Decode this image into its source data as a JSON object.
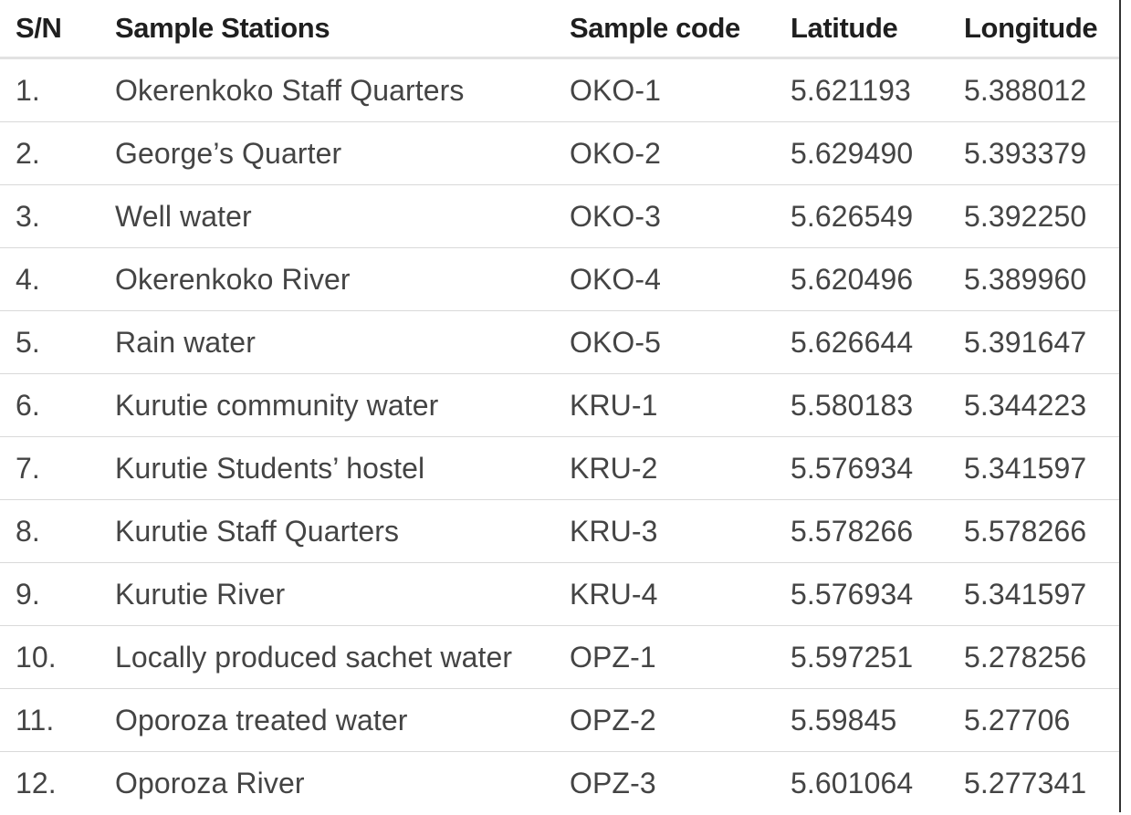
{
  "table": {
    "headers": {
      "sn": "S/N",
      "station": "Sample Stations",
      "code": "Sample code",
      "latitude": "Latitude",
      "longitude": "Longitude"
    },
    "rows": [
      {
        "sn": "1.",
        "station": "Okerenkoko Staff Quarters",
        "code": "OKO-1",
        "latitude": "5.621193",
        "longitude": "5.388012"
      },
      {
        "sn": "2.",
        "station": "George’s Quarter",
        "code": "OKO-2",
        "latitude": "5.629490",
        "longitude": "5.393379"
      },
      {
        "sn": "3.",
        "station": "Well water",
        "code": "OKO-3",
        "latitude": "5.626549",
        "longitude": "5.392250"
      },
      {
        "sn": "4.",
        "station": "Okerenkoko River",
        "code": "OKO-4",
        "latitude": "5.620496",
        "longitude": "5.389960"
      },
      {
        "sn": "5.",
        "station": "Rain water",
        "code": "OKO-5",
        "latitude": "5.626644",
        "longitude": "5.391647"
      },
      {
        "sn": "6.",
        "station": "Kurutie community water",
        "code": "KRU-1",
        "latitude": "5.580183",
        "longitude": "5.344223"
      },
      {
        "sn": "7.",
        "station": "Kurutie Students’ hostel",
        "code": "KRU-2",
        "latitude": "5.576934",
        "longitude": "5.341597"
      },
      {
        "sn": "8.",
        "station": "Kurutie Staff Quarters",
        "code": "KRU-3",
        "latitude": "5.578266",
        "longitude": "5.578266"
      },
      {
        "sn": "9.",
        "station": "Kurutie River",
        "code": "KRU-4",
        "latitude": "5.576934",
        "longitude": "5.341597"
      },
      {
        "sn": "10.",
        "station": "Locally produced sachet water",
        "code": "OPZ-1",
        "latitude": "5.597251",
        "longitude": "5.278256"
      },
      {
        "sn": "11.",
        "station": "Oporoza treated water",
        "code": "OPZ-2",
        "latitude": "5.59845",
        "longitude": "5.27706"
      },
      {
        "sn": "12.",
        "station": "Oporoza River",
        "code": "OPZ-3",
        "latitude": "5.601064",
        "longitude": "5.277341"
      }
    ]
  }
}
